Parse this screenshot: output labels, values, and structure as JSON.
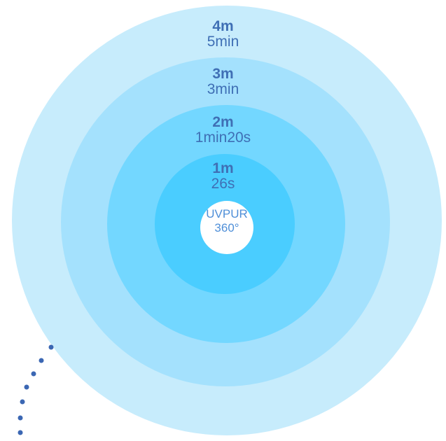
{
  "rings": [
    {
      "distance": "4m",
      "duration": "5min"
    },
    {
      "distance": "3m",
      "duration": "3min"
    },
    {
      "distance": "2m",
      "duration": "1min20s"
    },
    {
      "distance": "1m",
      "duration": "26s"
    }
  ],
  "center": {
    "line1": "UVPUR",
    "line2": "360°"
  },
  "colors": {
    "ring_4m": "#c7ecfc",
    "ring_3m": "#a4e1fd",
    "ring_2m": "#73d7ff",
    "ring_1m": "#4acdff",
    "center_fill": "#ffffff",
    "label_text": "#3f6fb5",
    "center_text": "#4f8fd8",
    "dots": "#3b67b3"
  }
}
